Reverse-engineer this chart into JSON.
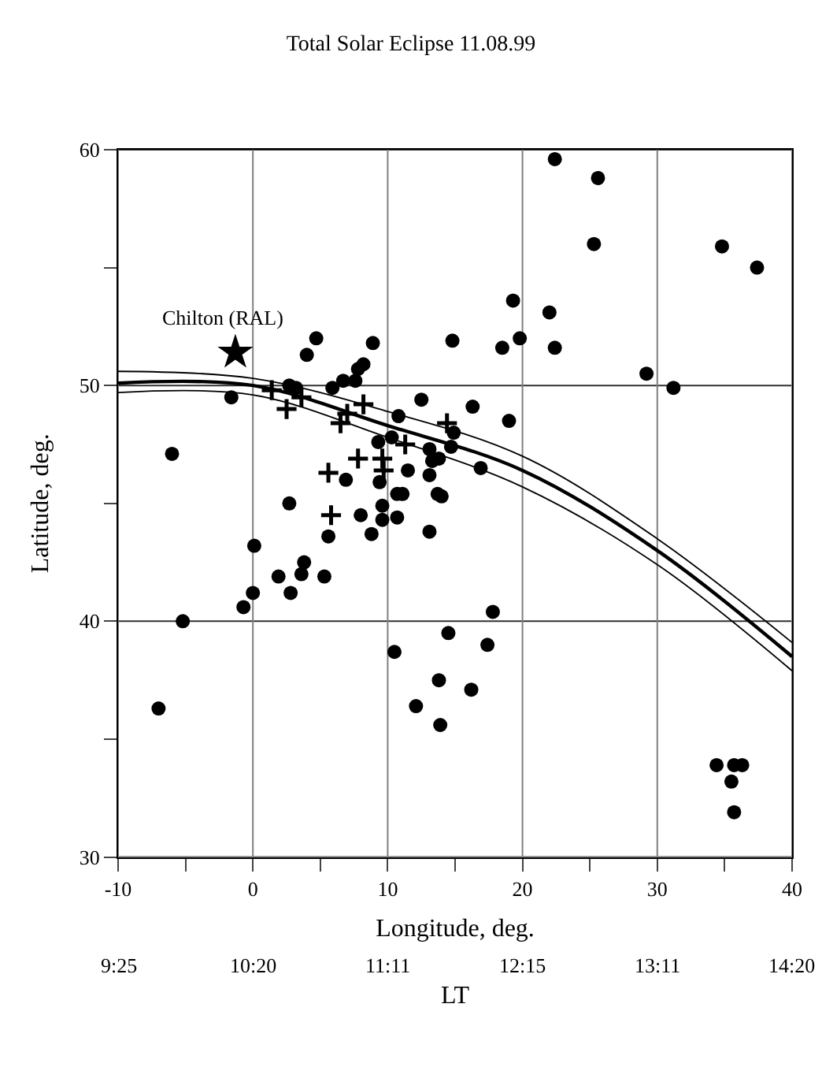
{
  "chart_data": {
    "type": "scatter",
    "title": "Total Solar Eclipse 11.08.99",
    "xlabel": "Longitude, deg.",
    "ylabel": "Latitude, deg.",
    "x2label": "LT",
    "xlim": [
      -10,
      40
    ],
    "ylim": [
      30,
      60
    ],
    "xticks": [
      -10,
      {
        "value": -5,
        "label": null
      },
      0,
      {
        "value": 5,
        "label": null
      },
      10,
      {
        "value": 15,
        "label": null
      },
      20,
      {
        "value": 25,
        "label": null
      },
      30,
      {
        "value": 35,
        "label": null
      },
      40
    ],
    "yticks": [
      30,
      {
        "value": 35,
        "label": null
      },
      40,
      {
        "value": 45,
        "label": null
      },
      50,
      {
        "value": 55,
        "label": null
      },
      60
    ],
    "grid": true,
    "legend": false,
    "series": [
      {
        "marker": "circle",
        "color": "#000000",
        "x": [
          4.7,
          4.0,
          8.9,
          -1.6,
          -6.0,
          2.7,
          3.2,
          5.9,
          6.7,
          7.6,
          7.8,
          8.2,
          12.5,
          10.8,
          10.3,
          9.3,
          13.1,
          13.3,
          11.5,
          6.9,
          13.1,
          9.4,
          10.7,
          11.1,
          13.7,
          2.7,
          8.0,
          9.6,
          9.6,
          10.7,
          5.6,
          8.8,
          13.1,
          0.1,
          22.4,
          25.6,
          25.3,
          34.8,
          37.4,
          19.3,
          22.0,
          14.8,
          18.5,
          19.8,
          22.4,
          29.2,
          31.2,
          16.3,
          19.0,
          14.9,
          14.7,
          16.9,
          14.0,
          13.8,
          1.9,
          3.8,
          3.6,
          5.3,
          2.8,
          0.0,
          -0.7,
          -5.2,
          -7.0,
          10.5,
          13.8,
          12.1,
          13.9,
          14.5,
          17.8,
          17.4,
          16.2,
          34.4,
          35.7,
          36.3,
          35.5,
          35.7
        ],
        "values": [
          52.0,
          51.3,
          51.8,
          49.5,
          47.1,
          50.0,
          49.9,
          49.9,
          50.2,
          50.2,
          50.7,
          50.9,
          49.4,
          48.7,
          47.8,
          47.6,
          47.3,
          46.8,
          46.4,
          46.0,
          46.2,
          45.9,
          45.4,
          45.4,
          45.4,
          45.0,
          44.5,
          44.9,
          44.3,
          44.4,
          43.6,
          43.7,
          43.8,
          43.2,
          59.6,
          58.8,
          56.0,
          55.9,
          55.0,
          53.6,
          53.1,
          51.9,
          51.6,
          52.0,
          51.6,
          50.5,
          49.9,
          49.1,
          48.5,
          48.0,
          47.4,
          46.5,
          45.3,
          46.9,
          41.9,
          42.5,
          42.0,
          41.9,
          41.2,
          41.2,
          40.6,
          40.0,
          36.3,
          38.7,
          37.5,
          36.4,
          35.6,
          39.5,
          40.4,
          39.0,
          37.1,
          33.9,
          33.9,
          33.9,
          33.2,
          31.9
        ]
      },
      {
        "marker": "cross",
        "color": "#000000",
        "x": [
          1.4,
          3.6,
          2.5,
          8.2,
          7.0,
          6.5,
          11.3,
          9.6,
          7.8,
          9.7,
          5.6,
          5.8,
          14.4
        ],
        "values": [
          49.8,
          49.5,
          49.0,
          49.2,
          48.8,
          48.4,
          47.5,
          46.9,
          46.9,
          46.4,
          46.3,
          44.5,
          48.4
        ]
      },
      {
        "marker": "star",
        "color": "#000000",
        "x": [
          -1.3
        ],
        "values": [
          51.4
        ]
      },
      {
        "type": "line",
        "marker": "none",
        "line_style": "solid",
        "color": "#000000",
        "x": [
          -10,
          0,
          10,
          20,
          30,
          40
        ],
        "values": [
          50.6,
          50.3,
          48.9,
          47.0,
          43.5,
          39.1
        ]
      },
      {
        "type": "line",
        "marker": "none",
        "line_style": "solid",
        "color": "#000000",
        "x": [
          -10,
          0,
          10,
          20,
          30,
          40
        ],
        "values": [
          50.1,
          50.0,
          48.3,
          46.4,
          43.0,
          38.5
        ]
      },
      {
        "type": "line",
        "marker": "none",
        "line_style": "solid",
        "color": "#000000",
        "x": [
          -10,
          0,
          10,
          20,
          30,
          40
        ],
        "values": [
          49.7,
          49.6,
          47.8,
          45.7,
          42.4,
          37.9
        ]
      }
    ],
    "annotations": [
      {
        "text": "Chilton (RAL)",
        "x": -1.3,
        "y": 51.4
      },
      "9:25",
      "10:20",
      "11:11",
      "12:15",
      "13:11",
      "14:20"
    ]
  }
}
